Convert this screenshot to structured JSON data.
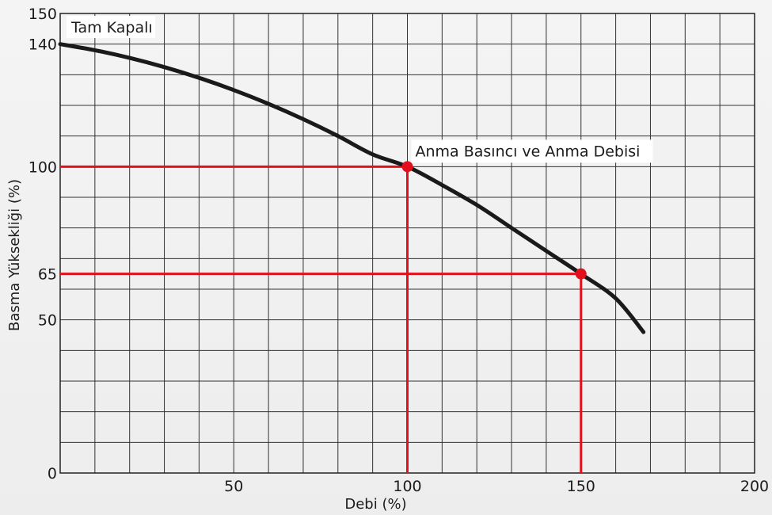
{
  "chart_data": {
    "type": "line",
    "xlabel": "Debi (%)",
    "ylabel": "Basma Yüksekliği (%)",
    "xlim": [
      0,
      200
    ],
    "ylim": [
      0,
      150
    ],
    "x_ticks": [
      50,
      100,
      150,
      200
    ],
    "y_ticks": [
      0,
      50,
      65,
      100,
      140,
      150
    ],
    "grid": true,
    "series": [
      {
        "color": "#1a1a1a",
        "x": [
          0,
          10,
          20,
          30,
          40,
          50,
          60,
          70,
          80,
          90,
          100,
          110,
          120,
          130,
          140,
          150,
          160,
          168
        ],
        "y": [
          140,
          138,
          135.5,
          132.5,
          129,
          125,
          120.5,
          115.5,
          110,
          104,
          100,
          94,
          87.5,
          80,
          72.5,
          65,
          57,
          46
        ]
      }
    ],
    "reference_points": [
      {
        "x": 100,
        "y": 100,
        "label": "Anma Basıncı ve Anma Debisi"
      },
      {
        "x": 150,
        "y": 65,
        "label": ""
      }
    ],
    "reference_color": "#e3101c",
    "annotations": [
      {
        "text": "Tam Kapalı"
      }
    ]
  }
}
